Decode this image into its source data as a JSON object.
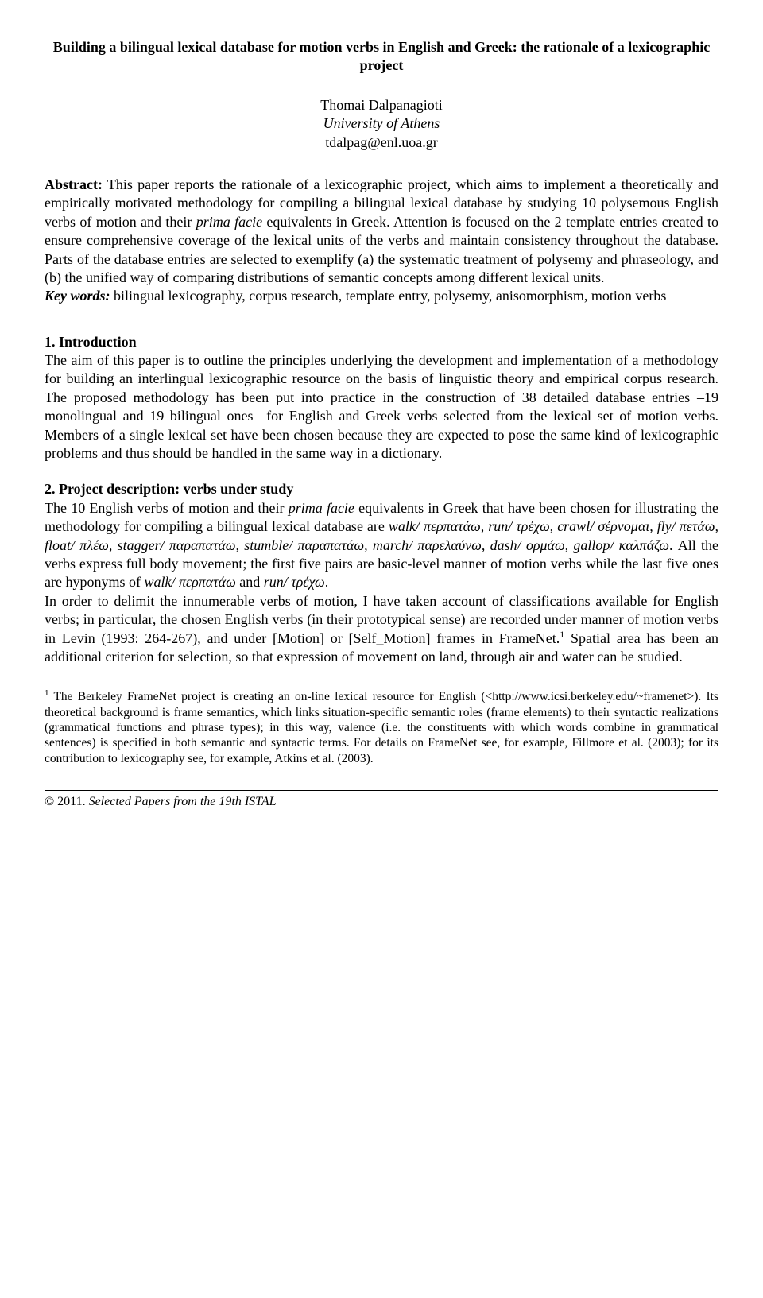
{
  "title": "Building a bilingual lexical database for motion verbs in English and Greek: the rationale of a lexicographic project",
  "author": {
    "name": "Thomai Dalpanagioti",
    "affiliation": "University of Athens",
    "email": "tdalpag@enl.uoa.gr"
  },
  "abstract": {
    "label": "Abstract:",
    "text_before_emph": " This paper reports the rationale of a lexicographic project, which aims to implement a theoretically and empirically motivated methodology for compiling a bilingual lexical database by studying 10 polysemous English verbs of motion and their ",
    "emph": "prima facie",
    "text_after_emph": " equivalents in Greek. Attention is focused on the 2 template entries created to ensure comprehensive coverage of the lexical units of the verbs and maintain consistency throughout the database. Parts of the database entries are selected to exemplify (a) the systematic treatment of polysemy and phraseology, and (b) the unified way of comparing distributions of semantic concepts among different lexical units."
  },
  "keywords": {
    "label": "Key words:",
    "text": " bilingual lexicography, corpus research, template entry, polysemy, anisomorphism, motion verbs"
  },
  "section1": {
    "heading": "1. Introduction",
    "body": "The aim of this paper is to outline the principles underlying the development and implementation of a methodology for building an interlingual lexicographic resource on the basis of linguistic theory and empirical corpus research. The proposed methodology has been put into practice in the construction of 38 detailed database entries –19 monolingual and 19 bilingual ones– for English and Greek verbs selected from the lexical set of motion verbs. Members of a single lexical set have been chosen because they are expected to pose the same kind of lexicographic problems and thus should be handled in the same way in a dictionary."
  },
  "section2": {
    "heading": "2. Project description: verbs under study",
    "p1_a": "The 10 English verbs of motion and their ",
    "p1_pf": "prima facie",
    "p1_b": " equivalents in Greek that have been chosen for illustrating the methodology for compiling a bilingual lexical database are ",
    "pairs": "walk/ περπατάω, run/ τρέχω, crawl/ σέρνομαι, fly/ πετάω, float/ πλέω, stagger/ παραπατάω, stumble/ παραπατάω, march/ παρελαύνω, dash/ ορμάω, gallop/ καλπάζω",
    "p1_c": ". All the verbs express full body movement; the first five pairs are basic-level manner of motion verbs while the last five ones are hyponyms of ",
    "hyp1": "walk/ περπατάω",
    "p1_d": " and ",
    "hyp2": "run/ τρέχω",
    "p1_e": ".",
    "p2_a": "In order to delimit the innumerable verbs of motion, I have taken account of classifications available for English verbs; in particular, the chosen English verbs (in their prototypical sense) are recorded under manner of motion verbs in Levin (1993: 264-267), and under [Motion] or [Self_Motion] frames in FrameNet.",
    "p2_b": " Spatial area has been an additional criterion for selection, so that expression of movement on land, through air and water can be studied."
  },
  "footnote": {
    "marker": "1",
    "text": " The Berkeley FrameNet project is creating an on-line lexical resource for English (<http://www.icsi.berkeley.edu/~framenet>). Its theoretical background is frame semantics, which links situation-specific semantic roles (frame elements) to their syntactic realizations (grammatical functions and phrase types); in this way, valence (i.e. the constituents with which words combine in grammatical sentences) is specified in both semantic and syntactic terms. For details on FrameNet see, for example, Fillmore et al. (2003); for its contribution to lexicography see, for example, Atkins et al. (2003)."
  },
  "copyright": {
    "year": "© 2011.",
    "source": "Selected Papers from the 19th ISTAL"
  }
}
